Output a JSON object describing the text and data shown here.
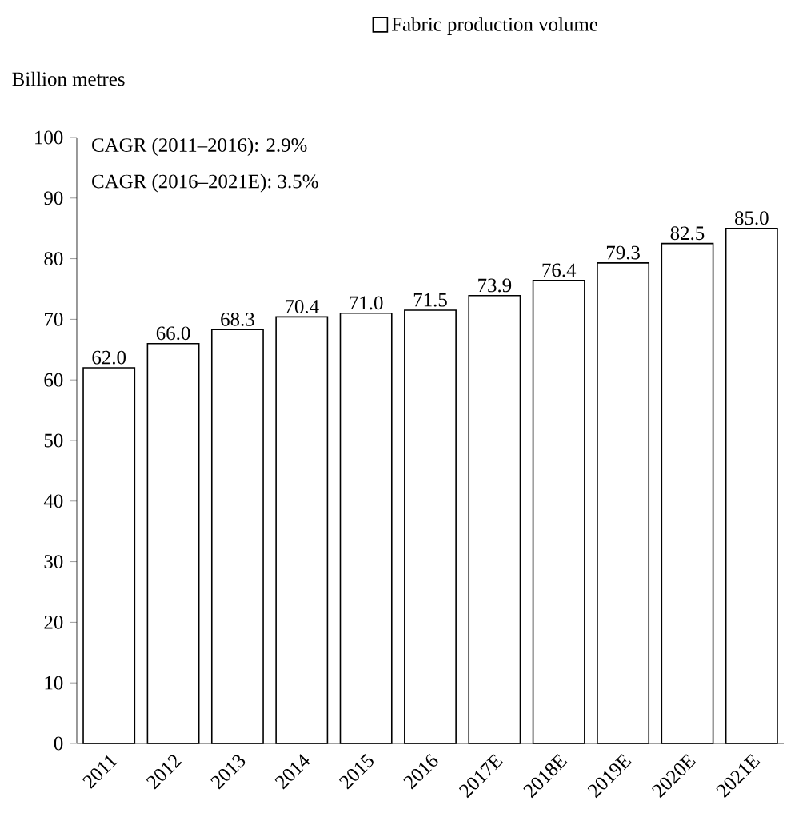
{
  "chart_data": {
    "type": "bar",
    "categories": [
      "2011",
      "2012",
      "2013",
      "2014",
      "2015",
      "2016",
      "2017E",
      "2018E",
      "2019E",
      "2020E",
      "2021E"
    ],
    "series": [
      {
        "name": "Fabric production volume",
        "color": "#ffffff",
        "values": [
          62.0,
          66.0,
          68.3,
          70.4,
          71.0,
          71.5,
          73.9,
          76.4,
          79.3,
          82.5,
          85.0
        ],
        "value_labels": [
          "62.0",
          "66.0",
          "68.3",
          "70.4",
          "71.0",
          "71.5",
          "73.9",
          "76.4",
          "79.3",
          "82.5",
          "85.0"
        ]
      }
    ],
    "ylabel": "Billion metres",
    "ylim": [
      0,
      100
    ],
    "yticks": [
      0,
      10,
      20,
      30,
      40,
      50,
      60,
      70,
      80,
      90,
      100
    ],
    "annotations": [
      "CAGR (2011–2016): 2.9%",
      "CAGR (2016–2021E): 3.5%"
    ],
    "legend": "top",
    "grid": false
  }
}
